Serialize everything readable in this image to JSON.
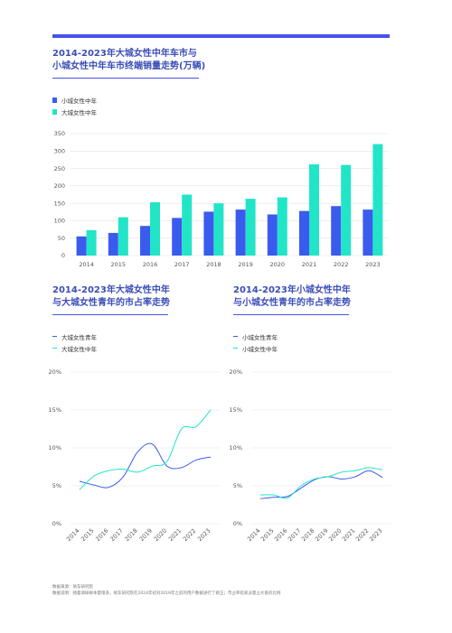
{
  "colors": {
    "accent": "#4454e9",
    "dark_blue": "#3b5bef",
    "cyan": "#22e5c8",
    "title": "#3b4db8",
    "axis_text": "#555555",
    "grid": "#e3e3e3"
  },
  "titles": {
    "bar_line1": "2014-2023年大城女性中年车市与",
    "bar_line2": "小城女性中年车市终端销量走势(万辆)",
    "left_line1": "2014-2023年大城女性中年",
    "left_line2": "与大城女性青年的市占率走势",
    "right_line1": "2014-2023年小城女性中年",
    "right_line2": "与小城女性青年的市占率走势"
  },
  "legends": {
    "bar": [
      "小城女性中年",
      "大城女性中年"
    ],
    "left": [
      "大城女性青年",
      "大城女性中年"
    ],
    "right": [
      "小城女性青年",
      "小城女性中年"
    ]
  },
  "footnotes": {
    "line1": "数据来源：易车研究院",
    "line2": "数据说明：随着调研样本量增多，易车研究院在2024年初对2019年之前的用户数据进行了修正；市占率指某派量占大盘的比例"
  },
  "chart_data": [
    {
      "type": "bar",
      "categories": [
        "2014",
        "2015",
        "2016",
        "2017",
        "2018",
        "2019",
        "2020",
        "2021",
        "2022",
        "2023"
      ],
      "ylim": [
        0,
        350
      ],
      "yticks": [
        0,
        50,
        100,
        150,
        200,
        250,
        300,
        350
      ],
      "grid": true,
      "legend": "top-left",
      "series": [
        {
          "name": "小城女性中年",
          "color": "#3b5bef",
          "values": [
            55,
            65,
            85,
            108,
            126,
            132,
            118,
            128,
            142,
            132
          ]
        },
        {
          "name": "大城女性中年",
          "color": "#22e5c8",
          "values": [
            73,
            110,
            153,
            175,
            150,
            163,
            167,
            262,
            260,
            320
          ]
        }
      ]
    },
    {
      "type": "line",
      "x": [
        "2014",
        "2015",
        "2016",
        "2017",
        "2018",
        "2019",
        "2020",
        "2021",
        "2022",
        "2023"
      ],
      "ylim": [
        0,
        20
      ],
      "yticks": [
        "0%",
        "5%",
        "10%",
        "15%",
        "20%"
      ],
      "grid": true,
      "legend": "top-left",
      "series": [
        {
          "name": "大城女性青年",
          "color": "#3b5bef",
          "values": [
            5.6,
            5.1,
            4.8,
            6.2,
            9.5,
            10.5,
            7.6,
            7.4,
            8.4,
            8.8
          ]
        },
        {
          "name": "大城女性中年",
          "color": "#22e5c8",
          "values": [
            4.5,
            6.3,
            7.0,
            7.2,
            6.8,
            7.6,
            8.2,
            12.5,
            12.8,
            15.0
          ]
        }
      ]
    },
    {
      "type": "line",
      "x": [
        "2014",
        "2015",
        "2016",
        "2017",
        "2018",
        "2019",
        "2020",
        "2021",
        "2022",
        "2023"
      ],
      "ylim": [
        0,
        20
      ],
      "yticks": [
        "0%",
        "5%",
        "10%",
        "15%",
        "20%"
      ],
      "grid": true,
      "legend": "top-left",
      "series": [
        {
          "name": "小城女性青年",
          "color": "#3b5bef",
          "values": [
            3.3,
            3.5,
            3.6,
            4.7,
            5.8,
            6.2,
            5.9,
            6.2,
            7.0,
            6.1
          ]
        },
        {
          "name": "小城女性中年",
          "color": "#22e5c8",
          "values": [
            3.8,
            3.8,
            3.4,
            5.0,
            5.9,
            6.2,
            6.8,
            7.0,
            7.4,
            7.1
          ]
        }
      ]
    }
  ]
}
